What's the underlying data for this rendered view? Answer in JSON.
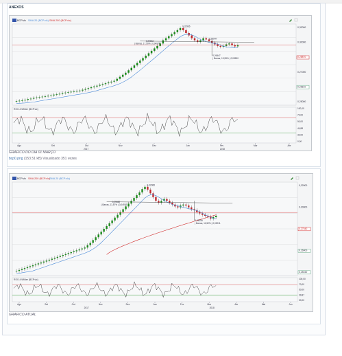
{
  "topbar": {
    "text": "·"
  },
  "post": {
    "tag": "ANEXOS"
  },
  "attachment1": {
    "caption": "GRAFICO DO DIA 01 MARÇO",
    "filename": "bcp0.png",
    "size": "(153.51 kB)",
    "views": "Visualizado 351 vezes"
  },
  "attachment2": {
    "caption": "GRAFICO ATUAL"
  },
  "chart1": {
    "toolbar": {
      "symbol": "BCP.vlc",
      "ma1": "SMA 20 (BCP.vlc)",
      "ma2": "SMA 200 (BCP.vlc)"
    },
    "price_labels": [
      "0,32000",
      "0,30000",
      "0,28870",
      "0,27000",
      "0,26610",
      "0,25000"
    ],
    "annotations": {
      "hi": "0,32966",
      "mid1": "0,29652",
      "mid1b": "| Barras, 17,50% | 0,04976",
      "mid2": "0,29547",
      "low": "0,26447",
      "lowb": "| Barras, 13,59% | 0,03590"
    },
    "indicator": {
      "title": "RSI 14 Wilder (BCP.vlc)",
      "labels": [
        "100,00",
        "70,00",
        "50,00",
        "44,88",
        "30,00",
        "0,00"
      ]
    },
    "x_labels": [
      "Ago",
      "Set",
      "Out",
      "Nov",
      "Dez",
      "Jan",
      "Fev",
      "Mar",
      "Abr"
    ],
    "years": [
      "2017",
      "2018"
    ],
    "series": [
      0.15,
      0.151,
      0.152,
      0.153,
      0.155,
      0.156,
      0.158,
      0.159,
      0.16,
      0.161,
      0.162,
      0.163,
      0.164,
      0.166,
      0.167,
      0.168,
      0.17,
      0.171,
      0.172,
      0.173,
      0.174,
      0.175,
      0.176,
      0.178,
      0.18,
      0.182,
      0.184,
      0.186,
      0.188,
      0.19,
      0.192,
      0.194,
      0.196,
      0.198,
      0.2,
      0.205,
      0.21,
      0.215,
      0.22,
      0.226,
      0.232,
      0.238,
      0.244,
      0.25,
      0.256,
      0.262,
      0.268,
      0.274,
      0.28,
      0.286,
      0.292,
      0.3,
      0.305,
      0.31,
      0.315,
      0.32,
      0.325,
      0.33,
      0.325,
      0.318,
      0.312,
      0.305,
      0.3,
      0.296,
      0.3,
      0.305,
      0.302,
      0.298,
      0.294,
      0.29,
      0.286,
      0.284,
      0.286,
      0.29,
      0.292,
      0.288,
      0.285,
      0.288
    ]
  },
  "chart2": {
    "toolbar": {
      "symbol": "BCP.vlc",
      "ma1": "SMA 200 (BCP.vlc)",
      "ma2": "SMA 20 (BCP.vlc)"
    },
    "price_labels": [
      "0,32000",
      "0,30000",
      "0,27540",
      "0,26000",
      "0,25160"
    ],
    "annotations": {
      "hi": "0,32966",
      "mid1": "0,29652",
      "mid1b": "| Barras, 11,57% | 0,04976",
      "low": "0,26155",
      "lowb": "| Barras, 11,52% | 0,03011"
    },
    "indicator": {
      "title": "RSI 14 Wilder (BCP.vlc)",
      "labels": [
        "100,00",
        "70,00",
        "50,00",
        "39,87",
        "30,00"
      ]
    },
    "x_labels": [
      "Ago",
      "Set",
      "Out",
      "Nov",
      "Dez",
      "Jan",
      "Fev",
      "Mar",
      "Abr",
      "Mai",
      "Jun"
    ],
    "years": [
      "2017",
      "2018"
    ],
    "series": [
      0.15,
      0.152,
      0.154,
      0.156,
      0.158,
      0.16,
      0.162,
      0.164,
      0.166,
      0.168,
      0.17,
      0.172,
      0.174,
      0.176,
      0.178,
      0.18,
      0.182,
      0.184,
      0.186,
      0.188,
      0.19,
      0.192,
      0.194,
      0.196,
      0.198,
      0.2,
      0.205,
      0.21,
      0.216,
      0.222,
      0.228,
      0.234,
      0.24,
      0.246,
      0.252,
      0.258,
      0.264,
      0.27,
      0.276,
      0.282,
      0.288,
      0.294,
      0.3,
      0.306,
      0.312,
      0.318,
      0.325,
      0.33,
      0.324,
      0.316,
      0.308,
      0.3,
      0.296,
      0.3,
      0.304,
      0.3,
      0.296,
      0.292,
      0.288,
      0.286,
      0.29,
      0.292,
      0.29,
      0.286,
      0.282,
      0.28,
      0.276,
      0.273,
      0.27,
      0.268,
      0.266,
      0.262,
      0.265,
      0.268
    ]
  },
  "colors": {
    "up": "#1a8a1a",
    "down": "#c0262a",
    "sma20": "#4a8ad8",
    "sma200": "#d02a2a",
    "grid": "#d4d6da",
    "line": "#556677"
  }
}
